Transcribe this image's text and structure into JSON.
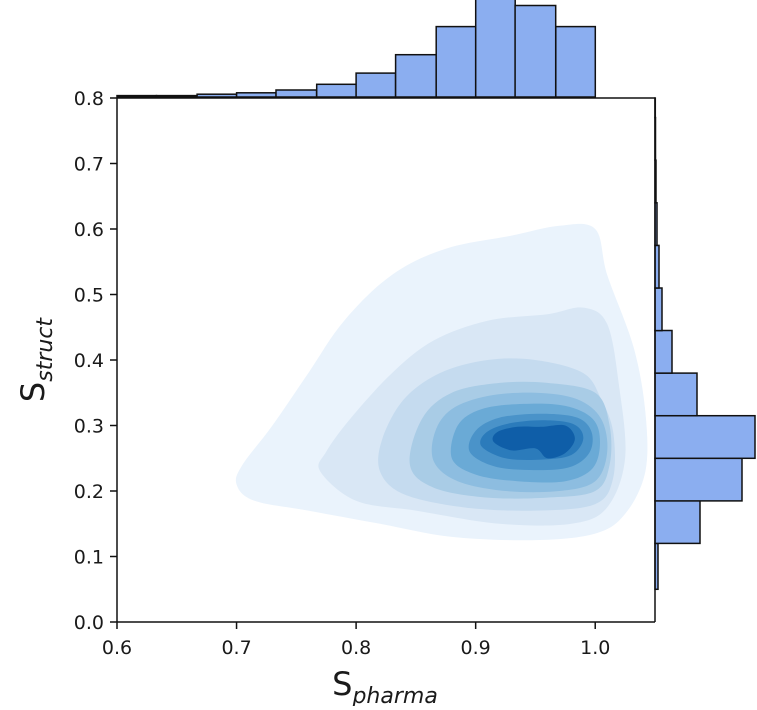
{
  "chart_data": {
    "type": "kde_joint",
    "joint": {
      "type": "kde-contour",
      "xlabel_base": "S",
      "xlabel_sub": "pharma",
      "ylabel_base": "S",
      "ylabel_sub": "struct",
      "xlim": [
        0.6,
        1.05
      ],
      "ylim": [
        0.0,
        0.8
      ],
      "x_ticks": [
        0.6,
        0.7,
        0.8,
        0.9,
        1.0
      ],
      "x_tick_labels": [
        "0.6",
        "0.7",
        "0.8",
        "0.9",
        "1.0"
      ],
      "y_ticks": [
        0.0,
        0.1,
        0.2,
        0.3,
        0.4,
        0.5,
        0.6,
        0.7,
        0.8
      ],
      "y_tick_labels": [
        "0.0",
        "0.1",
        "0.2",
        "0.3",
        "0.4",
        "0.5",
        "0.6",
        "0.7",
        "0.8"
      ],
      "grid": false,
      "density_peak": {
        "x": 0.945,
        "y": 0.285
      },
      "contour_levels": [
        {
          "level": 1,
          "color": "#eaf3fc",
          "points": [
            [
              0.7,
              0.21
            ],
            [
              0.715,
              0.185
            ],
            [
              0.76,
              0.17
            ],
            [
              0.82,
              0.15
            ],
            [
              0.88,
              0.13
            ],
            [
              0.95,
              0.125
            ],
            [
              1.0,
              0.135
            ],
            [
              1.025,
              0.165
            ],
            [
              1.042,
              0.23
            ],
            [
              1.042,
              0.32
            ],
            [
              1.032,
              0.42
            ],
            [
              1.01,
              0.53
            ],
            [
              1.0,
              0.6
            ],
            [
              0.97,
              0.605
            ],
            [
              0.93,
              0.59
            ],
            [
              0.875,
              0.57
            ],
            [
              0.83,
              0.53
            ],
            [
              0.79,
              0.46
            ],
            [
              0.76,
              0.38
            ],
            [
              0.73,
              0.3
            ],
            [
              0.705,
              0.24
            ]
          ]
        },
        {
          "level": 2,
          "color": "#d9e7f5",
          "points": [
            [
              0.77,
              0.23
            ],
            [
              0.8,
              0.185
            ],
            [
              0.85,
              0.17
            ],
            [
              0.92,
              0.15
            ],
            [
              0.98,
              0.15
            ],
            [
              1.01,
              0.175
            ],
            [
              1.025,
              0.25
            ],
            [
              1.02,
              0.36
            ],
            [
              1.01,
              0.455
            ],
            [
              0.99,
              0.48
            ],
            [
              0.96,
              0.47
            ],
            [
              0.91,
              0.46
            ],
            [
              0.865,
              0.43
            ],
            [
              0.83,
              0.38
            ],
            [
              0.795,
              0.31
            ],
            [
              0.775,
              0.26
            ]
          ]
        },
        {
          "level": 3,
          "color": "#c5dbef",
          "points": [
            [
              0.82,
              0.23
            ],
            [
              0.84,
              0.195
            ],
            [
              0.89,
              0.175
            ],
            [
              0.95,
              0.17
            ],
            [
              1.0,
              0.18
            ],
            [
              1.015,
              0.22
            ],
            [
              1.015,
              0.29
            ],
            [
              1.005,
              0.34
            ],
            [
              0.99,
              0.38
            ],
            [
              0.95,
              0.4
            ],
            [
              0.91,
              0.4
            ],
            [
              0.87,
              0.38
            ],
            [
              0.84,
              0.34
            ],
            [
              0.822,
              0.28
            ]
          ]
        },
        {
          "level": 4,
          "color": "#a9cce6",
          "points": [
            [
              0.845,
              0.24
            ],
            [
              0.865,
              0.205
            ],
            [
              0.91,
              0.19
            ],
            [
              0.96,
              0.19
            ],
            [
              1.0,
              0.2
            ],
            [
              1.012,
              0.24
            ],
            [
              1.012,
              0.3
            ],
            [
              1.0,
              0.35
            ],
            [
              0.96,
              0.365
            ],
            [
              0.92,
              0.365
            ],
            [
              0.88,
              0.35
            ],
            [
              0.855,
              0.31
            ]
          ]
        },
        {
          "level": 5,
          "color": "#8dbde0",
          "points": [
            [
              0.865,
              0.245
            ],
            [
              0.885,
              0.215
            ],
            [
              0.925,
              0.2
            ],
            [
              0.97,
              0.2
            ],
            [
              1.0,
              0.215
            ],
            [
              1.01,
              0.26
            ],
            [
              1.005,
              0.31
            ],
            [
              0.985,
              0.34
            ],
            [
              0.95,
              0.35
            ],
            [
              0.91,
              0.345
            ],
            [
              0.88,
              0.325
            ],
            [
              0.866,
              0.29
            ]
          ]
        },
        {
          "level": 6,
          "color": "#6aaad6",
          "points": [
            [
              0.88,
              0.25
            ],
            [
              0.9,
              0.225
            ],
            [
              0.935,
              0.215
            ],
            [
              0.975,
              0.215
            ],
            [
              0.998,
              0.235
            ],
            [
              1.004,
              0.275
            ],
            [
              0.998,
              0.31
            ],
            [
              0.975,
              0.33
            ],
            [
              0.94,
              0.333
            ],
            [
              0.905,
              0.325
            ],
            [
              0.885,
              0.3
            ]
          ]
        },
        {
          "level": 7,
          "color": "#4a93c9",
          "points": [
            [
              0.895,
              0.26
            ],
            [
              0.915,
              0.238
            ],
            [
              0.945,
              0.232
            ],
            [
              0.978,
              0.236
            ],
            [
              0.995,
              0.258
            ],
            [
              0.997,
              0.29
            ],
            [
              0.985,
              0.312
            ],
            [
              0.955,
              0.318
            ],
            [
              0.92,
              0.312
            ],
            [
              0.9,
              0.292
            ]
          ]
        },
        {
          "level": 8,
          "color": "#2b7bbb",
          "points": [
            [
              0.905,
              0.268
            ],
            [
              0.925,
              0.25
            ],
            [
              0.955,
              0.248
            ],
            [
              0.98,
              0.255
            ],
            [
              0.99,
              0.28
            ],
            [
              0.982,
              0.302
            ],
            [
              0.955,
              0.308
            ],
            [
              0.925,
              0.302
            ],
            [
              0.908,
              0.288
            ]
          ]
        },
        {
          "level": 9,
          "color": "#0f5ea8",
          "points": [
            [
              0.915,
              0.275
            ],
            [
              0.93,
              0.262
            ],
            [
              0.95,
              0.265
            ],
            [
              0.96,
              0.25
            ],
            [
              0.975,
              0.258
            ],
            [
              0.983,
              0.28
            ],
            [
              0.975,
              0.3
            ],
            [
              0.955,
              0.298
            ],
            [
              0.935,
              0.298
            ],
            [
              0.918,
              0.29
            ]
          ]
        }
      ]
    },
    "x_marginal": {
      "type": "histogram",
      "axis": "x",
      "bins": [
        [
          0.6,
          0.633
        ],
        [
          0.633,
          0.667
        ],
        [
          0.667,
          0.7
        ],
        [
          0.7,
          0.733
        ],
        [
          0.733,
          0.767
        ],
        [
          0.767,
          0.8
        ],
        [
          0.8,
          0.833
        ],
        [
          0.833,
          0.867
        ],
        [
          0.867,
          0.9
        ],
        [
          0.9,
          0.933
        ],
        [
          0.933,
          0.967
        ],
        [
          0.967,
          1.0
        ]
      ],
      "counts": [
        1,
        1,
        2,
        3,
        5,
        9,
        17,
        30,
        50,
        71,
        65,
        50
      ],
      "color": "#8baef0",
      "edge_color": "#111111"
    },
    "y_marginal": {
      "type": "histogram",
      "axis": "y",
      "bins": [
        [
          0.766,
          0.8
        ],
        [
          0.732,
          0.766
        ],
        [
          0.698,
          0.732
        ],
        [
          0.664,
          0.698
        ],
        [
          0.63,
          0.664
        ],
        [
          0.596,
          0.63
        ],
        [
          0.562,
          0.596
        ],
        [
          0.528,
          0.562
        ],
        [
          0.494,
          0.528
        ],
        [
          0.46,
          0.494
        ],
        [
          0.426,
          0.46
        ],
        [
          0.392,
          0.426
        ],
        [
          0.358,
          0.392
        ],
        [
          0.324,
          0.358
        ],
        [
          0.29,
          0.324
        ],
        [
          0.256,
          0.29
        ],
        [
          0.222,
          0.256
        ],
        [
          0.188,
          0.222
        ],
        [
          0.154,
          0.188
        ],
        [
          0.12,
          0.154
        ],
        [
          0.086,
          0.12
        ]
      ],
      "counts": [
        0,
        0,
        0,
        0,
        0,
        0,
        0,
        0,
        0,
        0,
        0,
        0,
        0,
        0,
        0,
        0,
        0,
        0,
        0,
        0,
        0
      ],
      "display_bins": [
        [
          0.05,
          0.12
        ],
        [
          0.12,
          0.185
        ],
        [
          0.185,
          0.25
        ],
        [
          0.25,
          0.315
        ],
        [
          0.315,
          0.38
        ],
        [
          0.38,
          0.445
        ],
        [
          0.445,
          0.51
        ],
        [
          0.51,
          0.575
        ],
        [
          0.575,
          0.64
        ],
        [
          0.64,
          0.705
        ],
        [
          0.705,
          0.77
        ],
        [
          0.77,
          0.8
        ]
      ],
      "display_counts": [
        3,
        45,
        87,
        100,
        42,
        17,
        7,
        4,
        2,
        1,
        0.5,
        0.3
      ],
      "color": "#8baef0",
      "edge_color": "#111111"
    }
  }
}
